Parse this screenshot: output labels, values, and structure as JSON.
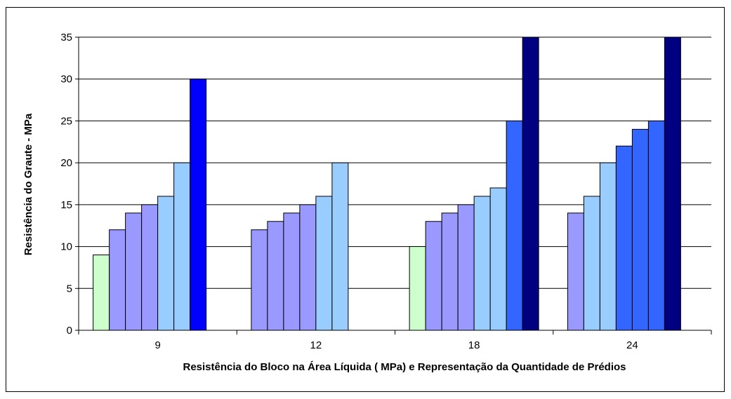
{
  "chart_data": {
    "type": "bar",
    "title": "",
    "xlabel": "Resistência do Bloco na Área Líquida ( MPa) e Representação da Quantidade de Prédios",
    "ylabel": "Resistência do Graute - MPa",
    "ylim": [
      0,
      35
    ],
    "yticks": [
      0,
      5,
      10,
      15,
      20,
      25,
      30,
      35
    ],
    "grid": true,
    "legend": "none",
    "categories": [
      "9",
      "12",
      "18",
      "24"
    ],
    "groups": [
      {
        "category": "9",
        "bars": [
          {
            "value": 9,
            "color": "#ccffcc"
          },
          {
            "value": 12,
            "color": "#9999ff"
          },
          {
            "value": 14,
            "color": "#9999ff"
          },
          {
            "value": 15,
            "color": "#9999ff"
          },
          {
            "value": 16,
            "color": "#99ccff"
          },
          {
            "value": 20,
            "color": "#99ccff"
          },
          {
            "value": 30,
            "color": "#0000ff"
          }
        ]
      },
      {
        "category": "12",
        "bars": [
          {
            "value": 12,
            "color": "#9999ff"
          },
          {
            "value": 13,
            "color": "#9999ff"
          },
          {
            "value": 14,
            "color": "#9999ff"
          },
          {
            "value": 15,
            "color": "#9999ff"
          },
          {
            "value": 16,
            "color": "#99ccff"
          },
          {
            "value": 20,
            "color": "#99ccff"
          }
        ]
      },
      {
        "category": "18",
        "bars": [
          {
            "value": 10,
            "color": "#ccffcc"
          },
          {
            "value": 13,
            "color": "#9999ff"
          },
          {
            "value": 14,
            "color": "#9999ff"
          },
          {
            "value": 15,
            "color": "#9999ff"
          },
          {
            "value": 16,
            "color": "#99ccff"
          },
          {
            "value": 17,
            "color": "#99ccff"
          },
          {
            "value": 25,
            "color": "#3366ff"
          },
          {
            "value": 35,
            "color": "#000080"
          }
        ]
      },
      {
        "category": "24",
        "bars": [
          {
            "value": 14,
            "color": "#9999ff"
          },
          {
            "value": 16,
            "color": "#99ccff"
          },
          {
            "value": 20,
            "color": "#99ccff"
          },
          {
            "value": 22,
            "color": "#3366ff"
          },
          {
            "value": 24,
            "color": "#3366ff"
          },
          {
            "value": 25,
            "color": "#3366ff"
          },
          {
            "value": 35,
            "color": "#000080"
          }
        ]
      }
    ]
  }
}
